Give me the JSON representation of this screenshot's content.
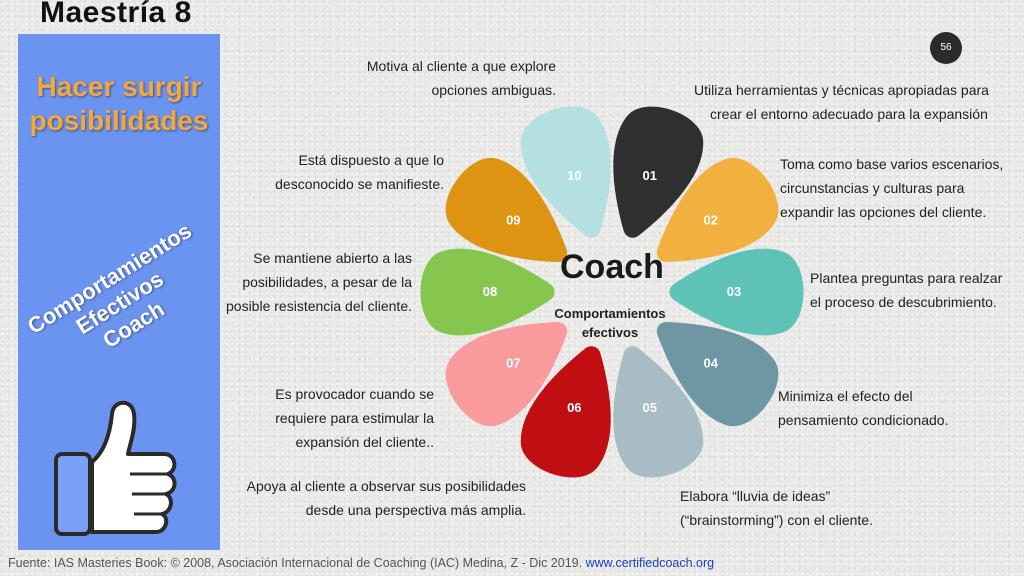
{
  "title": "Maestría 8",
  "page_number": "56",
  "side": {
    "heading_line1": "Hacer surgir",
    "heading_line2": "posibilidades",
    "rotated_line1": "Comportamientos",
    "rotated_line2": "Efectivos",
    "rotated_line3": "Coach"
  },
  "center": {
    "title": "Coach",
    "subtitle_line1": "Comportamientos",
    "subtitle_line2": "efectivos"
  },
  "petals": [
    {
      "label": "01",
      "color": "#2f2f2f"
    },
    {
      "label": "02",
      "color": "#f2b13f"
    },
    {
      "label": "03",
      "color": "#5ec2b6"
    },
    {
      "label": "04",
      "color": "#6f96a3"
    },
    {
      "label": "05",
      "color": "#a8bcc6"
    },
    {
      "label": "06",
      "color": "#c00e12"
    },
    {
      "label": "07",
      "color": "#f99a9c"
    },
    {
      "label": "08",
      "color": "#84c64e"
    },
    {
      "label": "09",
      "color": "#dd9412"
    },
    {
      "label": "10",
      "color": "#b5e0e1"
    }
  ],
  "notes": {
    "n01_line1": "Utiliza herramientas y técnicas apropiadas para",
    "n01_line2": "crear el entorno adecuado para la expansión",
    "n02_line1": "Toma como base varios escenarios,",
    "n02_line2": "circunstancias y culturas para",
    "n02_line3": "expandir las opciones del cliente.",
    "n03_line1": "Plantea preguntas para realzar",
    "n03_line2": "el proceso de descubrimiento.",
    "n04_line1": "Minimiza el efecto del",
    "n04_line2": "pensamiento condicionado.",
    "n05_line1": "Elabora “lluvia de ideas”",
    "n05_line2": "(“brainstorming”) con el cliente.",
    "n06_line1": "Apoya al cliente a observar sus posibilidades",
    "n06_line2": "desde una perspectiva más amplia.",
    "n07_line1": "Es provocador cuando se",
    "n07_line2": "requiere para estimular la",
    "n07_line3": "expansión del cliente..",
    "n08_line1": "Se mantiene abierto a las",
    "n08_line2": "posibilidades, a pesar de la",
    "n08_line3": "posible resistencia del cliente.",
    "n09_line1": "Está dispuesto a que lo",
    "n09_line2": "desconocido se manifieste.",
    "n10_line1": "Motiva al cliente a que explore",
    "n10_line2": "opciones ambiguas."
  },
  "footer": {
    "source": "Fuente: IAS Masteries Book: © 2008, Asociación Internacional de Coaching (IAC) Medina, Z - Dic 2019.",
    "link": "www.certifiedcoach.org"
  }
}
